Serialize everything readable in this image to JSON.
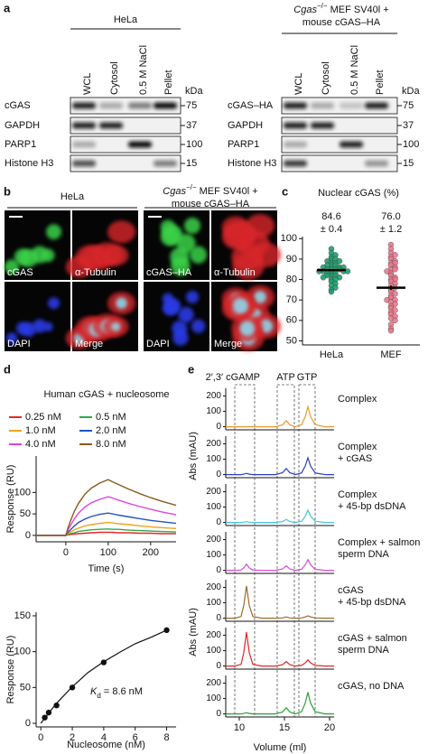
{
  "panel_labels": [
    "a",
    "b",
    "c",
    "d",
    "e"
  ],
  "blots": [
    {
      "title": "HeLa",
      "lanes": [
        "WCL",
        "Cytosol",
        "0.5 M NaCl",
        "Pellet"
      ],
      "rows": [
        "cGAS",
        "GAPDH",
        "PARP1",
        "Histone H3"
      ],
      "kda": "kDa",
      "markers": [
        "75",
        "37",
        "100",
        "15"
      ]
    },
    {
      "title": {
        "italic": "Cgas",
        "sup": "−/−",
        "rest": " MEF SV40l +",
        "line2": "mouse cGAS–HA"
      },
      "lanes": [
        "WCL",
        "Cytosol",
        "0.5 M NaCl",
        "Pellet"
      ],
      "rows": [
        "cGAS–HA",
        "GAPDH",
        "PARP1",
        "Histone H3"
      ],
      "kda": "kDa",
      "markers": [
        "75",
        "37",
        "100",
        "15"
      ]
    }
  ],
  "micrographs": [
    {
      "title": "HeLa",
      "labels": [
        "cGAS",
        "α-Tubulin",
        "DAPI",
        "Merge"
      ]
    },
    {
      "title": {
        "italic": "Cgas",
        "sup": "−/−",
        "rest": " MEF SV40l +",
        "line2": "mouse cGAS–HA"
      },
      "labels": [
        "cGAS–HA",
        "α-Tubulin",
        "DAPI",
        "Merge"
      ]
    }
  ],
  "chart_data": [
    {
      "type": "scatter",
      "title": "Nuclear cGAS (%)",
      "categories": [
        "HeLa",
        "MEF"
      ],
      "groups": [
        {
          "color": "#1f9e6e",
          "values": [
            95,
            93,
            92,
            91,
            90,
            90,
            89,
            89,
            88,
            88,
            87,
            87,
            87,
            86,
            86,
            86,
            85,
            85,
            85,
            85,
            84,
            84,
            84,
            84,
            83,
            83,
            83,
            82,
            82,
            82,
            81,
            81,
            80,
            80,
            79,
            78,
            77,
            76,
            75,
            74
          ]
        },
        {
          "color": "#ec7a8c",
          "values": [
            97,
            95,
            93,
            92,
            91,
            90,
            89,
            88,
            88,
            87,
            86,
            85,
            85,
            84,
            83,
            82,
            81,
            80,
            80,
            79,
            78,
            77,
            76,
            75,
            74,
            73,
            72,
            71,
            70,
            70,
            69,
            68,
            67,
            66,
            65,
            64,
            63,
            62,
            61,
            60,
            58,
            56,
            55
          ]
        }
      ],
      "means": [
        84.6,
        76.0
      ],
      "mean_labels": [
        "84.6",
        "76.0"
      ],
      "errors": [
        0.4,
        1.2
      ],
      "error_labels": [
        "± 0.4",
        "± 1.2"
      ],
      "ylim": [
        48,
        101
      ],
      "yticks": [
        50,
        60,
        70,
        80,
        90,
        100
      ]
    },
    {
      "type": "line",
      "title": "Human cGAS + nucleosome",
      "x": [
        -70,
        0,
        5,
        10,
        20,
        30,
        45,
        60,
        80,
        100,
        110,
        125,
        150,
        175,
        200,
        225,
        260
      ],
      "series": [
        {
          "name": "0.25 nM",
          "color": "#e8262b",
          "values": [
            0,
            0,
            1,
            2,
            3,
            4,
            5,
            6,
            7,
            7,
            7,
            6,
            6,
            5,
            5,
            4,
            4
          ]
        },
        {
          "name": "0.5 nM",
          "color": "#2ea84a",
          "values": [
            0,
            0,
            2,
            4,
            6,
            9,
            11,
            13,
            14,
            15,
            14,
            14,
            12,
            11,
            10,
            9,
            8
          ]
        },
        {
          "name": "1.0 nM",
          "color": "#f0a21c",
          "values": [
            0,
            0,
            4,
            7,
            13,
            17,
            22,
            25,
            28,
            30,
            29,
            27,
            25,
            22,
            20,
            18,
            16
          ]
        },
        {
          "name": "2.0 nM",
          "color": "#2453c4",
          "values": [
            0,
            0,
            7,
            12,
            22,
            30,
            38,
            44,
            49,
            52,
            50,
            47,
            43,
            39,
            35,
            32,
            28
          ]
        },
        {
          "name": "4.0 nM",
          "color": "#e044e0",
          "values": [
            0,
            0,
            12,
            21,
            39,
            52,
            66,
            76,
            84,
            90,
            87,
            82,
            74,
            67,
            61,
            55,
            48
          ]
        },
        {
          "name": "8.0 nM",
          "color": "#8a5a1c",
          "values": [
            0,
            0,
            17,
            31,
            56,
            75,
            96,
            110,
            122,
            130,
            125,
            118,
            107,
            97,
            88,
            80,
            70
          ]
        }
      ],
      "xlim": [
        -70,
        260
      ],
      "xticks": [
        0,
        100,
        200
      ],
      "ylim": [
        -15,
        185
      ],
      "yticks": [
        0,
        50,
        100
      ],
      "xlabel": "Time (s)",
      "ylabel": "Response (RU)"
    },
    {
      "type": "scatter",
      "x": [
        0.25,
        0.5,
        1,
        2,
        4,
        8
      ],
      "values": [
        8,
        15,
        25,
        50,
        85,
        130
      ],
      "fit": {
        "x": [
          0,
          1,
          2,
          3,
          4,
          5,
          6,
          7,
          8
        ],
        "values": [
          0,
          28,
          51,
          71,
          86,
          99,
          111,
          120,
          130
        ]
      },
      "xlim": [
        -0.3,
        8.6
      ],
      "xticks": [
        0,
        2,
        4,
        6,
        8
      ],
      "ylim": [
        -5,
        155
      ],
      "yticks": [
        0,
        50,
        100,
        150
      ],
      "xlabel": "Nucleosome (nM)",
      "ylabel": "Response (RU)",
      "annotation": {
        "symbol": "K",
        "subscript": "d",
        "text": " = 8.6 nM"
      }
    },
    {
      "type": "line",
      "x": [
        8.5,
        9.5,
        10.2,
        10.5,
        10.8,
        11.1,
        11.5,
        12.5,
        14,
        14.8,
        15.2,
        15.6,
        16.2,
        16.9,
        17.3,
        17.6,
        17.9,
        18.4,
        19.5,
        20.5
      ],
      "series": [
        {
          "name": "Complex",
          "color": "#e89a2a",
          "values": [
            0,
            0,
            0,
            0,
            0,
            0,
            0,
            0,
            0,
            12,
            40,
            12,
            0,
            13,
            65,
            130,
            65,
            13,
            0,
            0
          ]
        },
        {
          "name": "Complex\n+ cGAS",
          "color": "#2a3fc0",
          "values": [
            0,
            0,
            0,
            3,
            8,
            3,
            0,
            0,
            0,
            12,
            40,
            12,
            0,
            11,
            55,
            110,
            55,
            11,
            0,
            0
          ]
        },
        {
          "name": "Complex\n+ 45-bp dsDNA",
          "color": "#45c6e0",
          "values": [
            0,
            0,
            0,
            2,
            5,
            2,
            0,
            0,
            0,
            6,
            20,
            6,
            0,
            8,
            40,
            80,
            40,
            8,
            0,
            0
          ]
        },
        {
          "name": "Complex + salmon\nsperm DNA",
          "color": "#d94ad6",
          "values": [
            0,
            0,
            2,
            16,
            40,
            16,
            2,
            0,
            0,
            9,
            30,
            9,
            0,
            7,
            35,
            70,
            35,
            7,
            0,
            0
          ]
        },
        {
          "name": "cGAS\n+ 45-bp dsDNA",
          "color": "#9a6a2a",
          "values": [
            0,
            0,
            11,
            84,
            210,
            84,
            11,
            0,
            0,
            2,
            8,
            2,
            0,
            2,
            8,
            15,
            8,
            2,
            0,
            0
          ]
        },
        {
          "name": "cGAS + salmon\nsperm DNA",
          "color": "#e0262b",
          "values": [
            0,
            0,
            11,
            88,
            220,
            88,
            11,
            0,
            0,
            9,
            30,
            9,
            0,
            4,
            20,
            40,
            20,
            4,
            0,
            0
          ]
        },
        {
          "name": "cGAS, no DNA",
          "color": "#2e9e3a",
          "values": [
            0,
            0,
            0,
            3,
            8,
            3,
            0,
            0,
            0,
            12,
            40,
            12,
            0,
            14,
            70,
            140,
            70,
            14,
            0,
            0
          ]
        }
      ],
      "xlim": [
        8.5,
        20.5
      ],
      "xticks": [
        10,
        15,
        20
      ],
      "ylim": [
        -20,
        250
      ],
      "yticks": [
        0,
        100,
        200
      ],
      "xlabel": "Volume (ml)",
      "ylabels": [
        "Abs (mAU)",
        "Abs (mAU)"
      ],
      "regions": [
        {
          "label": "2′,3′ cGAMP",
          "range": [
            9.5,
            11.7
          ]
        },
        {
          "label": "ATP",
          "range": [
            14.2,
            16.1
          ]
        },
        {
          "label": "GTP",
          "range": [
            16.6,
            18.4
          ]
        }
      ]
    }
  ]
}
